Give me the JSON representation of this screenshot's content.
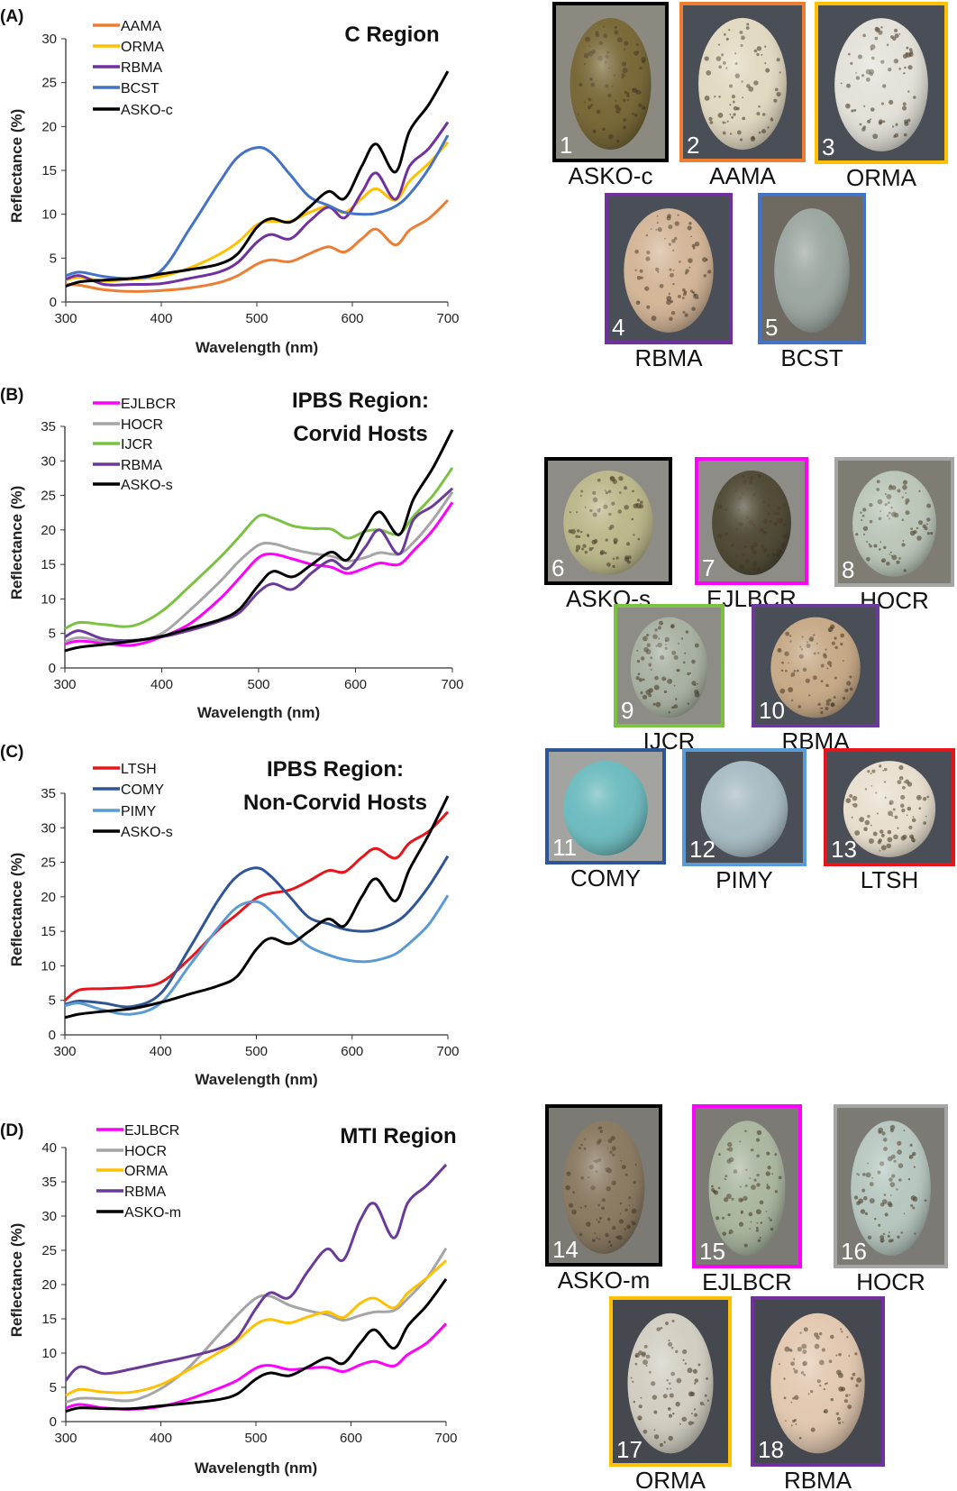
{
  "chart_data": [
    {
      "type": "line",
      "panel": "(A)",
      "title": [
        "C Region"
      ],
      "xlabel": "Wavelength (nm)",
      "ylabel": "Reflectance (%)",
      "xlim": [
        300,
        700
      ],
      "ylim": [
        0,
        30
      ],
      "xticks": [
        "300",
        "400",
        "500",
        "600",
        "700"
      ],
      "yticks": [
        "0",
        "5",
        "10",
        "15",
        "20",
        "25",
        "30"
      ],
      "grid": false,
      "legend": "top-left",
      "x": [
        300,
        315,
        340,
        370,
        400,
        430,
        460,
        480,
        500,
        515,
        535,
        555,
        575,
        592,
        610,
        625,
        645,
        660,
        680,
        700
      ],
      "series": [
        {
          "name": "AAMA",
          "color": "#ED7D31",
          "values": [
            2.0,
            1.9,
            1.4,
            1.2,
            1.3,
            1.6,
            2.2,
            3.0,
            4.3,
            4.8,
            4.6,
            5.5,
            6.3,
            5.7,
            7.2,
            8.3,
            6.5,
            8.2,
            9.5,
            11.6
          ]
        },
        {
          "name": "ORMA",
          "color": "#FFC000",
          "values": [
            2.5,
            2.8,
            2.4,
            2.6,
            2.9,
            3.9,
            5.4,
            6.8,
            8.8,
            9.2,
            9.2,
            10.2,
            10.9,
            10.2,
            11.8,
            12.9,
            11.6,
            13.8,
            15.8,
            18.2
          ]
        },
        {
          "name": "RBMA",
          "color": "#7030A0",
          "values": [
            2.6,
            3.0,
            2.0,
            2.0,
            2.1,
            2.7,
            3.4,
            4.5,
            6.8,
            7.7,
            7.2,
            9.2,
            10.8,
            9.6,
            12.5,
            14.7,
            11.7,
            15.5,
            17.5,
            20.5
          ]
        },
        {
          "name": "BCST",
          "color": "#4472C4",
          "values": [
            3.0,
            3.4,
            2.9,
            2.7,
            3.6,
            8.4,
            13.5,
            16.5,
            17.6,
            17.0,
            14.5,
            12.0,
            11.0,
            10.2,
            10.0,
            10.1,
            10.9,
            12.3,
            15.2,
            19.0
          ]
        },
        {
          "name": "ASKO-c",
          "color": "#000000",
          "values": [
            1.8,
            2.3,
            2.5,
            2.7,
            3.2,
            3.7,
            4.3,
            5.5,
            8.5,
            9.5,
            9.1,
            10.8,
            12.6,
            11.8,
            15.5,
            18.0,
            14.8,
            19.5,
            22.5,
            26.3
          ]
        }
      ]
    },
    {
      "type": "line",
      "panel": "(B)",
      "title": [
        "IPBS Region:",
        "Corvid Hosts"
      ],
      "xlabel": "Wavelength (nm)",
      "ylabel": "Reflectance (%)",
      "xlim": [
        300,
        700
      ],
      "ylim": [
        0,
        35
      ],
      "xticks": [
        "300",
        "400",
        "500",
        "600",
        "700"
      ],
      "yticks": [
        "0",
        "5",
        "10",
        "15",
        "20",
        "25",
        "30",
        "35"
      ],
      "grid": false,
      "legend": "top-left",
      "x": [
        300,
        315,
        340,
        370,
        400,
        430,
        460,
        480,
        500,
        515,
        535,
        555,
        575,
        592,
        610,
        625,
        645,
        660,
        680,
        700
      ],
      "series": [
        {
          "name": "EJLBCR",
          "color": "#FF00FF",
          "values": [
            3.5,
            3.9,
            3.6,
            3.3,
            4.5,
            6.5,
            10.0,
            13.0,
            16.0,
            16.5,
            15.8,
            15.0,
            14.6,
            13.7,
            14.5,
            15.2,
            15.0,
            17.0,
            20.0,
            24.0
          ]
        },
        {
          "name": "HOCR",
          "color": "#A5A5A5",
          "values": [
            3.8,
            4.4,
            3.9,
            3.8,
            5.0,
            8.5,
            12.5,
            15.5,
            17.8,
            18.0,
            17.2,
            16.6,
            16.2,
            15.5,
            16.0,
            16.7,
            16.5,
            18.2,
            21.5,
            25.5
          ]
        },
        {
          "name": "IJCR",
          "color": "#7CC242",
          "values": [
            5.7,
            6.6,
            6.3,
            6.1,
            8.2,
            12.0,
            16.0,
            19.0,
            22.0,
            21.7,
            20.6,
            20.2,
            20.1,
            18.8,
            19.8,
            20.0,
            19.4,
            22.0,
            25.0,
            29.0
          ]
        },
        {
          "name": "RBMA",
          "color": "#6A3A9A",
          "values": [
            4.5,
            5.4,
            4.2,
            4.0,
            4.5,
            5.5,
            6.8,
            8.0,
            11.0,
            12.2,
            11.4,
            13.8,
            15.6,
            14.4,
            17.5,
            20.0,
            16.5,
            21.5,
            23.5,
            26.0
          ]
        },
        {
          "name": "ASKO-s",
          "color": "#000000",
          "values": [
            2.5,
            3.0,
            3.4,
            3.9,
            4.6,
            5.8,
            7.0,
            8.5,
            12.0,
            14.0,
            13.2,
            15.0,
            16.8,
            15.7,
            20.0,
            22.6,
            19.3,
            24.5,
            29.0,
            34.5
          ]
        }
      ]
    },
    {
      "type": "line",
      "panel": "(C)",
      "title": [
        "IPBS Region:",
        "Non-Corvid Hosts"
      ],
      "xlabel": "Wavelength (nm)",
      "ylabel": "Reflectance (%)",
      "xlim": [
        300,
        700
      ],
      "ylim": [
        0,
        35
      ],
      "xticks": [
        "300",
        "400",
        "500",
        "600",
        "700"
      ],
      "yticks": [
        "0",
        "5",
        "10",
        "15",
        "20",
        "25",
        "30",
        "35"
      ],
      "grid": false,
      "legend": "top-left",
      "x": [
        300,
        315,
        340,
        370,
        400,
        430,
        460,
        480,
        500,
        515,
        535,
        555,
        575,
        592,
        610,
        625,
        645,
        660,
        680,
        700
      ],
      "series": [
        {
          "name": "LTSH",
          "color": "#E8141B",
          "values": [
            5.0,
            6.5,
            6.7,
            6.9,
            7.6,
            11.0,
            15.2,
            17.5,
            19.8,
            20.5,
            21.0,
            22.3,
            23.8,
            23.6,
            25.7,
            27.0,
            25.6,
            27.8,
            29.5,
            32.3
          ]
        },
        {
          "name": "COMY",
          "color": "#2F5597",
          "values": [
            4.4,
            4.9,
            4.6,
            4.1,
            6.0,
            12.5,
            19.5,
            23.0,
            24.2,
            23.0,
            20.0,
            17.0,
            16.1,
            15.3,
            15.0,
            15.2,
            16.3,
            18.0,
            21.5,
            25.9
          ]
        },
        {
          "name": "PIMY",
          "color": "#5B9BD5",
          "values": [
            4.2,
            4.6,
            3.6,
            3.0,
            4.6,
            10.0,
            15.5,
            18.5,
            19.3,
            18.0,
            15.2,
            12.8,
            11.6,
            10.9,
            10.6,
            10.8,
            11.7,
            13.3,
            16.0,
            20.2
          ]
        },
        {
          "name": "ASKO-s",
          "color": "#000000",
          "values": [
            2.5,
            3.0,
            3.4,
            3.8,
            4.7,
            5.9,
            7.1,
            8.5,
            12.4,
            14.0,
            13.2,
            15.0,
            16.8,
            15.8,
            20.0,
            22.6,
            19.4,
            24.0,
            29.0,
            34.6
          ]
        }
      ]
    },
    {
      "type": "line",
      "panel": "(D)",
      "title": [
        "MTI Region"
      ],
      "xlabel": "Wavelength (nm)",
      "ylabel": "Reflectance (%)",
      "xlim": [
        300,
        700
      ],
      "ylim": [
        0,
        40
      ],
      "xticks": [
        "300",
        "400",
        "500",
        "600",
        "700"
      ],
      "yticks": [
        "0",
        "5",
        "10",
        "15",
        "20",
        "25",
        "30",
        "35",
        "40"
      ],
      "grid": false,
      "legend": "top-left",
      "x": [
        300,
        315,
        340,
        370,
        400,
        430,
        460,
        480,
        500,
        515,
        535,
        555,
        575,
        592,
        610,
        625,
        645,
        660,
        680,
        700
      ],
      "series": [
        {
          "name": "EJLBCR",
          "color": "#FF00FF",
          "values": [
            2.0,
            2.5,
            2.0,
            1.8,
            2.2,
            3.3,
            4.8,
            6.0,
            7.8,
            8.2,
            7.6,
            7.8,
            7.9,
            7.3,
            8.3,
            8.8,
            8.1,
            9.8,
            11.5,
            14.3
          ]
        },
        {
          "name": "HOCR",
          "color": "#A5A5A5",
          "values": [
            2.8,
            3.4,
            3.3,
            3.1,
            4.8,
            8.0,
            12.5,
            15.5,
            18.0,
            18.3,
            17.0,
            16.2,
            15.6,
            14.8,
            15.5,
            16.0,
            16.2,
            18.0,
            21.0,
            25.3
          ]
        },
        {
          "name": "ORMA",
          "color": "#FFC000",
          "values": [
            3.8,
            4.7,
            4.3,
            4.3,
            5.4,
            7.6,
            10.0,
            11.8,
            14.2,
            14.9,
            14.4,
            15.3,
            16.0,
            15.2,
            17.3,
            18.0,
            16.6,
            18.8,
            21.0,
            23.5
          ]
        },
        {
          "name": "RBMA",
          "color": "#6A3A9A",
          "values": [
            6.0,
            8.0,
            7.0,
            7.7,
            8.6,
            9.5,
            10.6,
            12.2,
            16.5,
            18.8,
            18.1,
            22.0,
            25.2,
            23.6,
            29.5,
            31.8,
            26.8,
            32.0,
            34.5,
            37.5
          ]
        },
        {
          "name": "ASKO-m",
          "color": "#000000",
          "values": [
            1.5,
            2.0,
            1.9,
            1.9,
            2.3,
            2.7,
            3.2,
            4.0,
            6.2,
            7.1,
            6.7,
            8.0,
            9.3,
            8.5,
            11.5,
            13.4,
            10.7,
            14.0,
            17.0,
            20.8
          ]
        }
      ]
    }
  ],
  "eggs": [
    {
      "number": "1",
      "label": "ASKO-c",
      "frame": "#000000",
      "shell": "#7a6a3a",
      "background": "#8c8a80"
    },
    {
      "number": "2",
      "label": "AAMA",
      "frame": "#ED7D31",
      "shell": "#e2d9c2",
      "background": "#4a4e57"
    },
    {
      "number": "3",
      "label": "ORMA",
      "frame": "#FFC000",
      "shell": "#e4e1d9",
      "background": "#4a4e57"
    },
    {
      "number": "4",
      "label": "RBMA",
      "frame": "#7030A0",
      "shell": "#d4b699",
      "background": "#4a4e57"
    },
    {
      "number": "5",
      "label": "BCST",
      "frame": "#4472C4",
      "shell": "#9ea8a3",
      "background": "#6e6a62"
    },
    {
      "number": "6",
      "label": "ASKO-s",
      "frame": "#000000",
      "shell": "#bcb88c",
      "background": "#8e8c86"
    },
    {
      "number": "7",
      "label": "EJLBCR",
      "frame": "#FF00FF",
      "shell": "#514c38",
      "background": "#8e8c86"
    },
    {
      "number": "8",
      "label": "HOCR",
      "frame": "#A5A5A5",
      "shell": "#bcc7b9",
      "background": "#7f7c74"
    },
    {
      "number": "9",
      "label": "IJCR",
      "frame": "#7CC242",
      "shell": "#a9b2a2",
      "background": "#8e8c86"
    },
    {
      "number": "10",
      "label": "RBMA",
      "frame": "#6A3A9A",
      "shell": "#c7aa88",
      "background": "#4a4e57"
    },
    {
      "number": "11",
      "label": "COMY",
      "frame": "#2F5597",
      "shell": "#6fbcc0",
      "background": "#a3a4a0"
    },
    {
      "number": "12",
      "label": "PIMY",
      "frame": "#5B9BD5",
      "shell": "#a9bcc4",
      "background": "#4a4e57"
    },
    {
      "number": "13",
      "label": "LTSH",
      "frame": "#E8141B",
      "shell": "#e8dfcf",
      "background": "#4a4e57"
    },
    {
      "number": "14",
      "label": "ASKO-m",
      "frame": "#000000",
      "shell": "#8b7b63",
      "background": "#7c7a74"
    },
    {
      "number": "15",
      "label": "EJLBCR",
      "frame": "#FF00FF",
      "shell": "#abb7a1",
      "background": "#7c7a74"
    },
    {
      "number": "16",
      "label": "HOCR",
      "frame": "#A5A5A5",
      "shell": "#b8c8c1",
      "background": "#7c7a74"
    },
    {
      "number": "17",
      "label": "ORMA",
      "frame": "#FFC000",
      "shell": "#d2cec2",
      "background": "#45484f"
    },
    {
      "number": "18",
      "label": "RBMA",
      "frame": "#7030A0",
      "shell": "#e3c9b1",
      "background": "#45484f"
    }
  ]
}
